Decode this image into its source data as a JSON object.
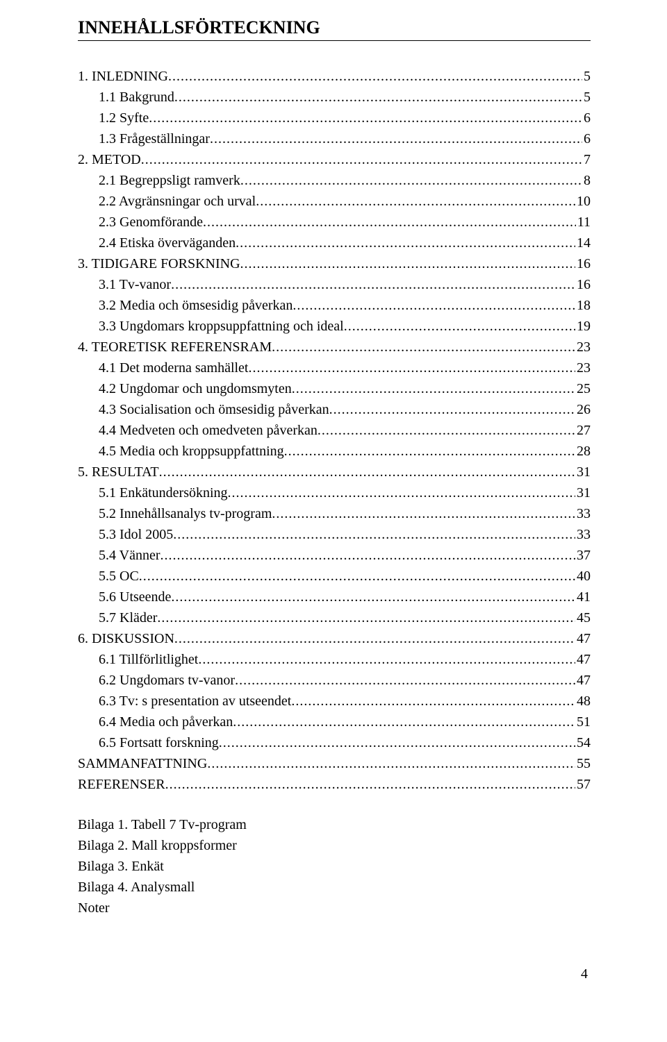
{
  "title": "INNEHÅLLSFÖRTECKNING",
  "toc": [
    {
      "level": 1,
      "label": "1. INLEDNING",
      "page": "5"
    },
    {
      "level": 2,
      "label": "1.1 Bakgrund",
      "page": "5"
    },
    {
      "level": 2,
      "label": "1.2 Syfte",
      "page": "6"
    },
    {
      "level": 2,
      "label": "1.3 Frågeställningar",
      "page": "6"
    },
    {
      "level": 1,
      "label": "2. METOD",
      "page": "7"
    },
    {
      "level": 2,
      "label": "2.1 Begreppsligt ramverk",
      "page": "8"
    },
    {
      "level": 2,
      "label": "2.2 Avgränsningar och urval",
      "page": "10"
    },
    {
      "level": 2,
      "label": "2.3 Genomförande",
      "page": "11"
    },
    {
      "level": 2,
      "label": "2.4 Etiska överväganden",
      "page": "14"
    },
    {
      "level": 1,
      "label": "3. TIDIGARE FORSKNING",
      "page": "16"
    },
    {
      "level": 2,
      "label": "3.1 Tv-vanor",
      "page": "16"
    },
    {
      "level": 2,
      "label": "3.2 Media och ömsesidig påverkan",
      "page": "18"
    },
    {
      "level": 2,
      "label": "3.3 Ungdomars kroppsuppfattning och ideal",
      "page": "19"
    },
    {
      "level": 1,
      "label": "4. TEORETISK REFERENSRAM",
      "page": "23"
    },
    {
      "level": 2,
      "label": "4.1 Det moderna samhället",
      "page": "23"
    },
    {
      "level": 2,
      "label": "4.2 Ungdomar och ungdomsmyten",
      "page": "25"
    },
    {
      "level": 2,
      "label": "4.3 Socialisation och ömsesidig påverkan",
      "page": "26"
    },
    {
      "level": 2,
      "label": "4.4 Medveten och omedveten påverkan",
      "page": "27"
    },
    {
      "level": 2,
      "label": "4.5 Media och kroppsuppfattning",
      "page": "28"
    },
    {
      "level": 1,
      "label": "5. RESULTAT",
      "page": "31"
    },
    {
      "level": 2,
      "label": "5.1 Enkätundersökning",
      "page": "31"
    },
    {
      "level": 2,
      "label": "5.2 Innehållsanalys tv-program",
      "page": "33"
    },
    {
      "level": 2,
      "label": "5.3 Idol 2005",
      "page": "33"
    },
    {
      "level": 2,
      "label": "5.4 Vänner",
      "page": "37"
    },
    {
      "level": 2,
      "label": "5.5 OC",
      "page": "40"
    },
    {
      "level": 2,
      "label": "5.6 Utseende",
      "page": "41"
    },
    {
      "level": 2,
      "label": "5.7 Kläder",
      "page": "45"
    },
    {
      "level": 1,
      "label": "6. DISKUSSION",
      "page": "47"
    },
    {
      "level": 2,
      "label": "6.1 Tillförlitlighet",
      "page": "47"
    },
    {
      "level": 2,
      "label": "6.2 Ungdomars tv-vanor",
      "page": "47"
    },
    {
      "level": 2,
      "label": "6.3 Tv: s presentation av utseendet",
      "page": "48"
    },
    {
      "level": 2,
      "label": "6.4 Media och påverkan",
      "page": "51"
    },
    {
      "level": 2,
      "label": "6.5 Fortsatt forskning",
      "page": "54"
    },
    {
      "level": 1,
      "label": "SAMMANFATTNING",
      "page": "55"
    },
    {
      "level": 1,
      "label": "REFERENSER",
      "page": "57"
    }
  ],
  "appendices": [
    "Bilaga 1. Tabell 7 Tv-program",
    "Bilaga 2. Mall kroppsformer",
    "Bilaga 3. Enkät",
    "Bilaga 4. Analysmall",
    "Noter"
  ],
  "page_number": "4"
}
